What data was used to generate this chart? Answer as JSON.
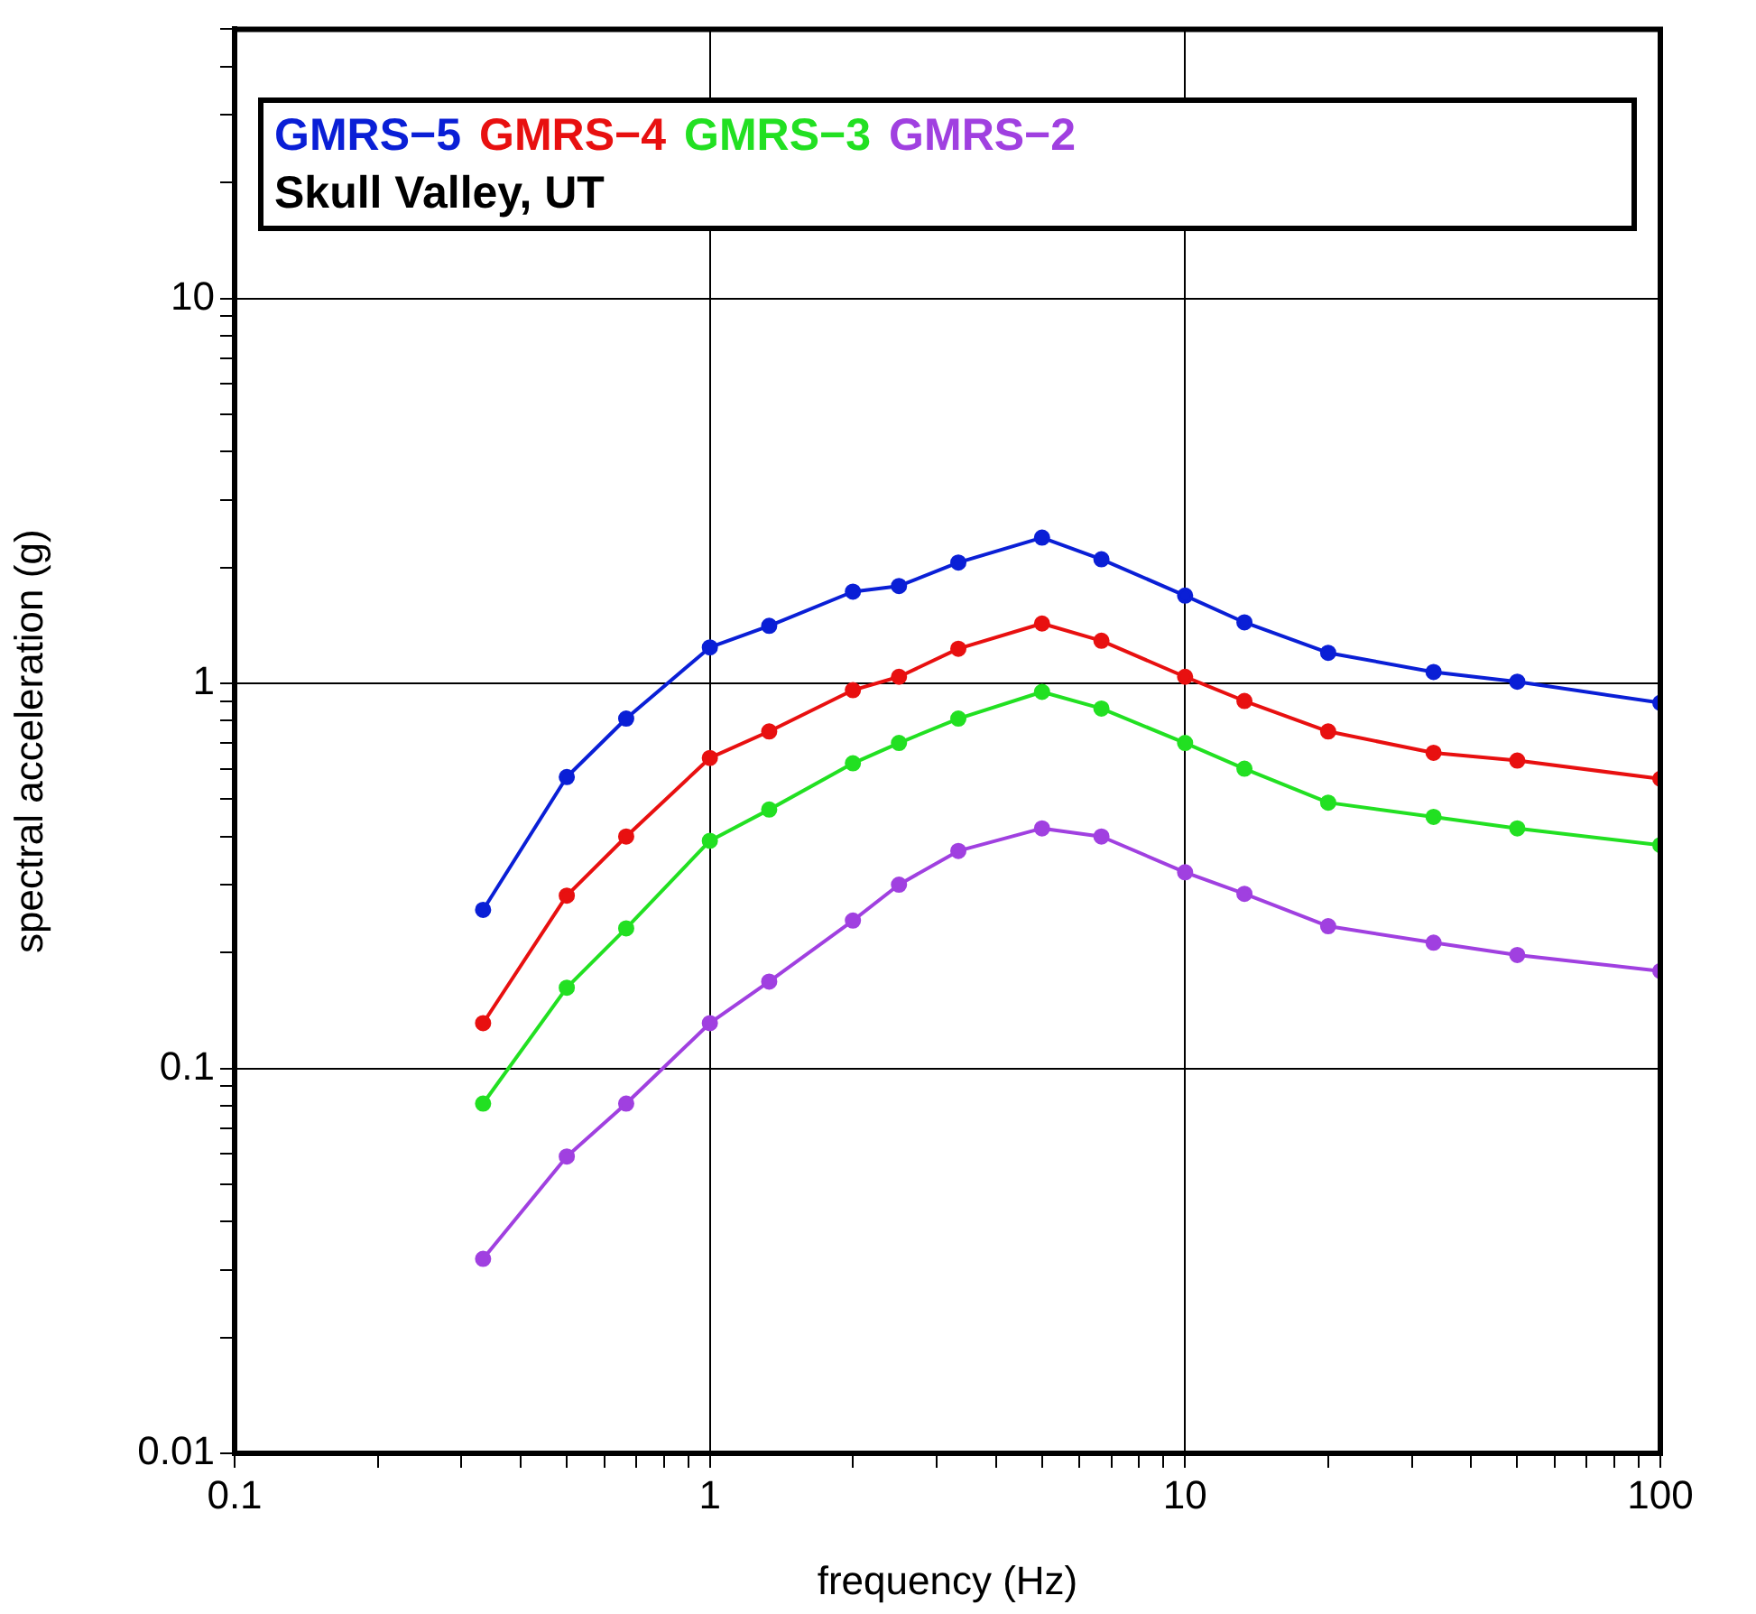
{
  "chart_data": {
    "type": "line",
    "xlabel": "frequency (Hz)",
    "ylabel": "spectral acceleration (g)",
    "log": "xy",
    "grid": true,
    "marker": "circle",
    "line_style": "solid",
    "legend": "top",
    "annotations": [
      "Skull Valley, UT"
    ],
    "x": [
      0.3333,
      0.5,
      0.6667,
      1,
      1.333,
      2,
      2.5,
      3.333,
      5,
      6.667,
      10,
      13.33,
      20,
      33.33,
      50,
      100
    ],
    "xlim": [
      0.1,
      100
    ],
    "xticks": [
      0.1,
      {
        "value": 0.2,
        "label": null
      },
      {
        "value": 0.3,
        "label": null
      },
      {
        "value": 0.4,
        "label": null
      },
      {
        "value": 0.5,
        "label": null
      },
      {
        "value": 0.6,
        "label": null
      },
      {
        "value": 0.7,
        "label": null
      },
      {
        "value": 0.8,
        "label": null
      },
      {
        "value": 0.9,
        "label": null
      },
      1,
      {
        "value": 2,
        "label": null
      },
      {
        "value": 3,
        "label": null
      },
      {
        "value": 4,
        "label": null
      },
      {
        "value": 5,
        "label": null
      },
      {
        "value": 6,
        "label": null
      },
      {
        "value": 7,
        "label": null
      },
      {
        "value": 8,
        "label": null
      },
      {
        "value": 9,
        "label": null
      },
      10,
      {
        "value": 20,
        "label": null
      },
      {
        "value": 30,
        "label": null
      },
      {
        "value": 40,
        "label": null
      },
      {
        "value": 50,
        "label": null
      },
      {
        "value": 60,
        "label": null
      },
      {
        "value": 70,
        "label": null
      },
      {
        "value": 80,
        "label": null
      },
      {
        "value": 90,
        "label": null
      },
      100
    ],
    "ylim": [
      0.01,
      50
    ],
    "yticks": [
      0.01,
      {
        "value": 0.02,
        "label": null
      },
      {
        "value": 0.03,
        "label": null
      },
      {
        "value": 0.04,
        "label": null
      },
      {
        "value": 0.05,
        "label": null
      },
      {
        "value": 0.06,
        "label": null
      },
      {
        "value": 0.07,
        "label": null
      },
      {
        "value": 0.08,
        "label": null
      },
      {
        "value": 0.09,
        "label": null
      },
      0.1,
      {
        "value": 0.2,
        "label": null
      },
      {
        "value": 0.3,
        "label": null
      },
      {
        "value": 0.4,
        "label": null
      },
      {
        "value": 0.5,
        "label": null
      },
      {
        "value": 0.6,
        "label": null
      },
      {
        "value": 0.7,
        "label": null
      },
      {
        "value": 0.8,
        "label": null
      },
      {
        "value": 0.9,
        "label": null
      },
      1,
      {
        "value": 2,
        "label": null
      },
      {
        "value": 3,
        "label": null
      },
      {
        "value": 4,
        "label": null
      },
      {
        "value": 5,
        "label": null
      },
      {
        "value": 6,
        "label": null
      },
      {
        "value": 7,
        "label": null
      },
      {
        "value": 8,
        "label": null
      },
      {
        "value": 9,
        "label": null
      },
      10,
      {
        "value": 20,
        "label": null
      },
      {
        "value": 30,
        "label": null
      },
      {
        "value": 40,
        "label": null
      },
      {
        "value": 50,
        "label": null
      }
    ],
    "series": [
      {
        "name": "GMRS−5",
        "color": "#0a1fd6",
        "values": [
          0.258,
          0.571,
          0.81,
          1.24,
          1.41,
          1.73,
          1.79,
          2.06,
          2.39,
          2.1,
          1.69,
          1.44,
          1.2,
          1.07,
          1.01,
          0.89
        ]
      },
      {
        "name": "GMRS−4",
        "color": "#e81010",
        "values": [
          0.131,
          0.281,
          0.4,
          0.64,
          0.75,
          0.96,
          1.04,
          1.23,
          1.43,
          1.29,
          1.04,
          0.9,
          0.75,
          0.66,
          0.63,
          0.565
        ]
      },
      {
        "name": "GMRS−3",
        "color": "#22e022",
        "values": [
          0.081,
          0.162,
          0.231,
          0.39,
          0.47,
          0.62,
          0.7,
          0.81,
          0.95,
          0.86,
          0.7,
          0.6,
          0.49,
          0.45,
          0.42,
          0.38
        ]
      },
      {
        "name": "GMRS−2",
        "color": "#a040e0",
        "values": [
          0.032,
          0.059,
          0.081,
          0.131,
          0.168,
          0.242,
          0.3,
          0.367,
          0.42,
          0.4,
          0.323,
          0.284,
          0.234,
          0.212,
          0.197,
          0.179
        ]
      }
    ]
  }
}
